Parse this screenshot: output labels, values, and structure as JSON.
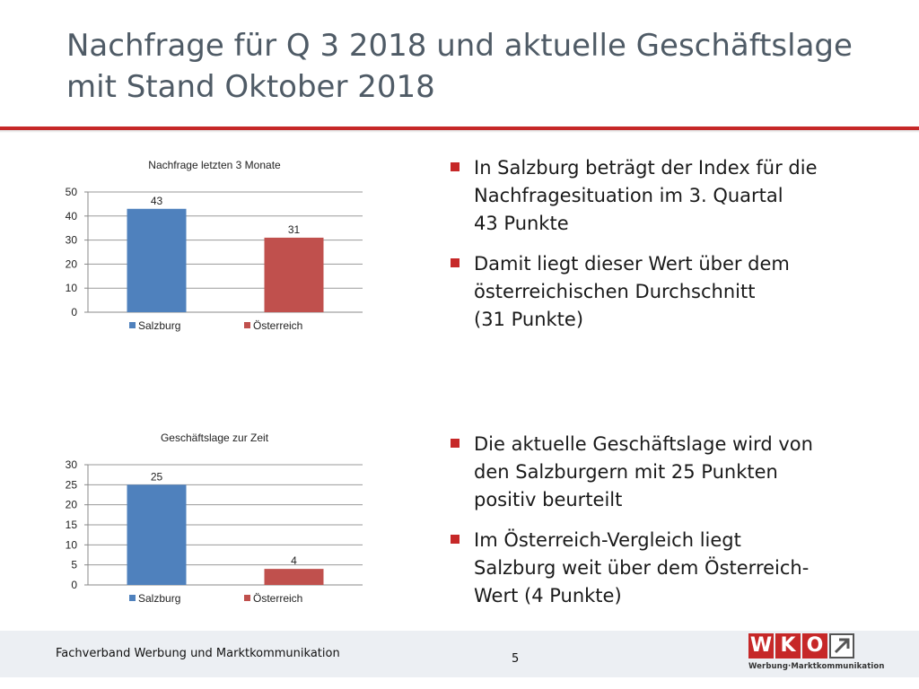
{
  "slide": {
    "title_lines": [
      "Nachfrage für Q 3 2018 und aktuelle Geschäftslage",
      "mit Stand Oktober 2018"
    ]
  },
  "chart_data": [
    {
      "type": "bar",
      "title": "Nachfrage letzten 3 Monate",
      "categories": [
        "Salzburg",
        "Österreich"
      ],
      "values": [
        43,
        31
      ],
      "data_labels": [
        "43",
        "31"
      ],
      "colors": [
        "#4f81bd",
        "#c0504d"
      ],
      "ylim": [
        0,
        50
      ],
      "yticks": [
        0,
        10,
        20,
        30,
        40,
        50
      ],
      "ytick_labels": [
        "0",
        "10",
        "20",
        "30",
        "40",
        "50"
      ],
      "grid": true,
      "legend": [
        "Salzburg",
        "Österreich"
      ],
      "legend_position": "bottom"
    },
    {
      "type": "bar",
      "title": "Geschäftslage zur Zeit",
      "categories": [
        "Salzburg",
        "Österreich"
      ],
      "values": [
        25,
        4
      ],
      "data_labels": [
        "25",
        "4"
      ],
      "colors": [
        "#4f81bd",
        "#c0504d"
      ],
      "ylim": [
        0,
        30
      ],
      "yticks": [
        0,
        5,
        10,
        15,
        20,
        25,
        30
      ],
      "ytick_labels": [
        "0",
        "5",
        "10",
        "15",
        "20",
        "25",
        "30"
      ],
      "grid": true,
      "legend": [
        "Salzburg",
        "Österreich"
      ],
      "legend_position": "bottom"
    }
  ],
  "bullets_upper": [
    {
      "lines": [
        "In Salzburg beträgt der Index für die",
        "Nachfragesituation im 3. Quartal",
        "43 Punkte"
      ]
    },
    {
      "lines": [
        "Damit liegt dieser Wert über dem",
        "österreichischen Durchschnitt",
        "(31 Punkte)"
      ]
    }
  ],
  "bullets_lower": [
    {
      "lines": [
        "Die aktuelle Geschäftslage wird von",
        "den Salzburgern mit 25 Punkten",
        "positiv beurteilt"
      ]
    },
    {
      "lines": [
        "Im Österreich-Vergleich liegt",
        "Salzburg weit über dem Österreich-",
        "Wert (4 Punkte)"
      ]
    }
  ],
  "footer": {
    "organization": "Fachverband Werbung und Marktkommunikation",
    "page_number": "5"
  },
  "logo": {
    "letters": [
      "W",
      "K",
      "O"
    ],
    "subtitle": "Werbung·Marktkommunikation",
    "brand_color": "#c62828"
  }
}
